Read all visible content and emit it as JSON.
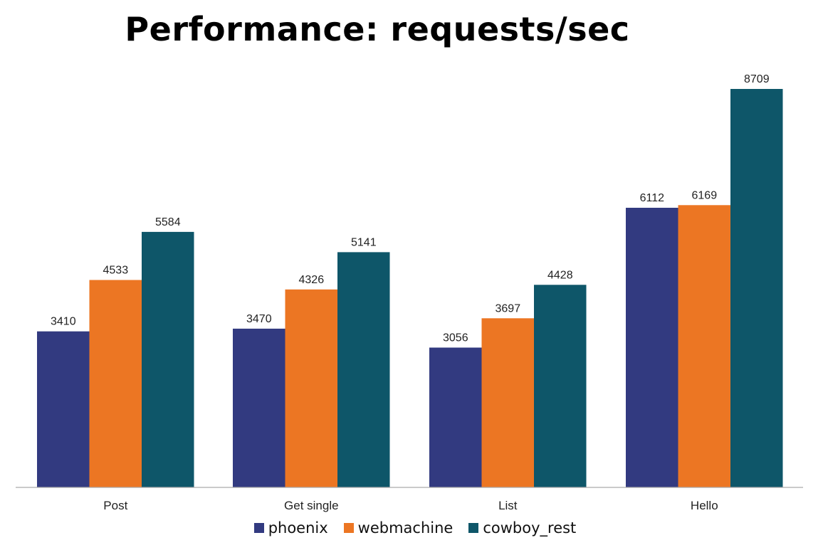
{
  "chart_data": {
    "type": "bar",
    "title": "Performance: requests/sec",
    "categories": [
      "Post",
      "Get single",
      "List",
      "Hello"
    ],
    "series": [
      {
        "name": "phoenix",
        "values": [
          3410,
          3470,
          3056,
          6112
        ],
        "color": "#323A80"
      },
      {
        "name": "webmachine",
        "values": [
          4533,
          4326,
          3697,
          6169
        ],
        "color": "#EC7623"
      },
      {
        "name": "cowboy_rest",
        "values": [
          5584,
          5141,
          4428,
          8709
        ],
        "color": "#0E5669"
      }
    ],
    "xlabel": "",
    "ylabel": "",
    "ylim": [
      0,
      8709
    ],
    "grid": false,
    "legend_position": "bottom"
  }
}
